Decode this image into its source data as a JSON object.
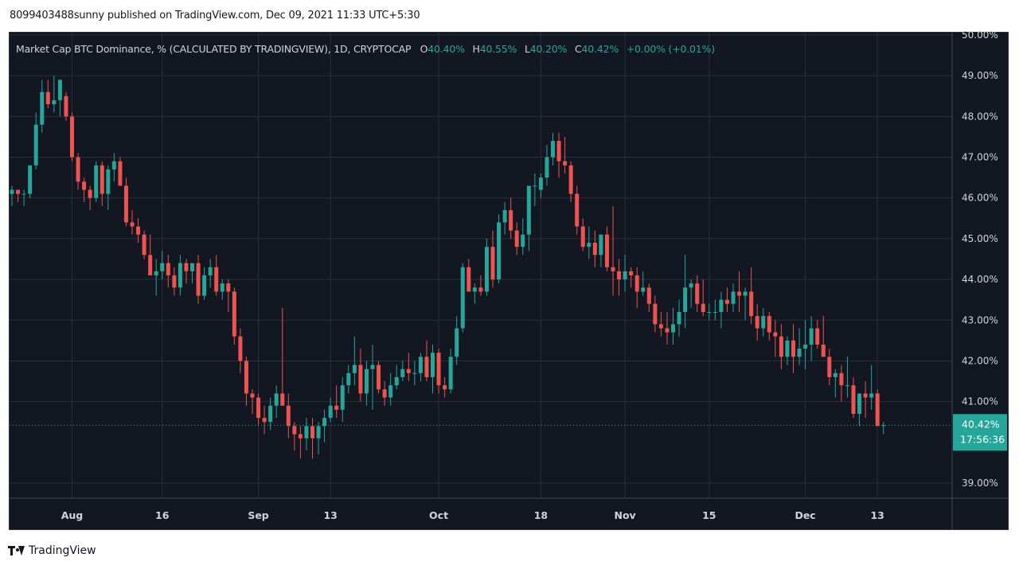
{
  "header": {
    "published_text": "8099403488sunny published on TradingView.com, Dec 09, 2021 11:33 UTC+5:30"
  },
  "legend": {
    "title": "Market Cap BTC Dominance, % (CALCULATED BY TRADINGVIEW), 1D, CRYPTOCAP",
    "o_label": "O",
    "o_value": "40.40%",
    "h_label": "H",
    "h_value": "40.55%",
    "l_label": "L",
    "l_value": "40.20%",
    "c_label": "C",
    "c_value": "40.42%",
    "change": "+0.00% (+0.01%)"
  },
  "price_tag": {
    "value": "40.42%",
    "countdown": "17:56:36"
  },
  "footer": {
    "brand": "TradingView",
    "logo_icon": "tradingview-logo-icon"
  },
  "colors": {
    "up": "#26a69a",
    "down": "#ef5350",
    "background": "#131722",
    "grid": "#2a2e39",
    "text": "#d1d4dc"
  },
  "chart_data": {
    "type": "candlestick",
    "ylim": [
      38.6,
      50.0
    ],
    "y_ticks": [
      {
        "value": 50,
        "label": "50.00%"
      },
      {
        "value": 49,
        "label": "49.00%"
      },
      {
        "value": 48,
        "label": "48.00%"
      },
      {
        "value": 47,
        "label": "47.00%"
      },
      {
        "value": 46,
        "label": "46.00%"
      },
      {
        "value": 45,
        "label": "45.00%"
      },
      {
        "value": 44,
        "label": "44.00%"
      },
      {
        "value": 43,
        "label": "43.00%"
      },
      {
        "value": 42,
        "label": "42.00%"
      },
      {
        "value": 41,
        "label": "41.00%"
      },
      {
        "value": 39,
        "label": "39.00%"
      }
    ],
    "x_ticks": [
      {
        "index": 10,
        "label": "Aug"
      },
      {
        "index": 25,
        "label": "16"
      },
      {
        "index": 41,
        "label": "Sep"
      },
      {
        "index": 53,
        "label": "13"
      },
      {
        "index": 71,
        "label": "Oct"
      },
      {
        "index": 88,
        "label": "18"
      },
      {
        "index": 102,
        "label": "Nov"
      },
      {
        "index": 116,
        "label": "15"
      },
      {
        "index": 132,
        "label": "Dec"
      },
      {
        "index": 144,
        "label": "13"
      }
    ],
    "last_value": 40.42,
    "candles": [
      [
        46.1,
        46.3,
        45.8,
        46.2
      ],
      [
        46.2,
        46.2,
        45.9,
        46.1
      ],
      [
        46.1,
        46.2,
        45.8,
        46.1
      ],
      [
        46.1,
        46.8,
        46.0,
        46.8
      ],
      [
        46.8,
        48.1,
        46.7,
        47.8
      ],
      [
        47.8,
        48.9,
        47.6,
        48.6
      ],
      [
        48.6,
        48.9,
        48.2,
        48.3
      ],
      [
        48.3,
        49.0,
        48.1,
        48.4
      ],
      [
        48.4,
        48.9,
        48.0,
        48.9
      ],
      [
        48.5,
        48.6,
        47.9,
        48.0
      ],
      [
        48.0,
        48.1,
        46.9,
        47.0
      ],
      [
        47.0,
        47.1,
        46.2,
        46.4
      ],
      [
        46.4,
        46.5,
        45.9,
        46.2
      ],
      [
        46.2,
        46.3,
        45.7,
        46.0
      ],
      [
        46.0,
        46.9,
        45.9,
        46.8
      ],
      [
        46.8,
        46.9,
        45.8,
        46.1
      ],
      [
        46.1,
        46.8,
        45.7,
        46.7
      ],
      [
        46.7,
        47.1,
        46.4,
        46.9
      ],
      [
        46.9,
        47.0,
        46.3,
        46.3
      ],
      [
        46.3,
        46.5,
        45.3,
        45.4
      ],
      [
        45.4,
        45.7,
        45.1,
        45.3
      ],
      [
        45.3,
        45.5,
        44.9,
        45.1
      ],
      [
        45.1,
        45.2,
        44.5,
        44.6
      ],
      [
        44.6,
        45.1,
        44.2,
        44.1
      ],
      [
        44.1,
        44.5,
        43.6,
        44.2
      ],
      [
        44.2,
        44.7,
        44.0,
        44.4
      ],
      [
        44.4,
        44.6,
        43.8,
        44.1
      ],
      [
        44.1,
        44.3,
        43.6,
        43.8
      ],
      [
        43.8,
        44.6,
        43.6,
        44.4
      ],
      [
        44.4,
        44.5,
        43.9,
        44.2
      ],
      [
        44.2,
        44.4,
        43.9,
        44.4
      ],
      [
        44.4,
        44.6,
        43.4,
        43.6
      ],
      [
        43.6,
        44.3,
        43.5,
        44.1
      ],
      [
        44.1,
        44.5,
        43.8,
        44.3
      ],
      [
        44.3,
        44.6,
        43.6,
        43.7
      ],
      [
        43.7,
        44.0,
        43.5,
        43.9
      ],
      [
        43.9,
        44.0,
        43.2,
        43.7
      ],
      [
        43.7,
        43.8,
        42.4,
        42.6
      ],
      [
        42.6,
        42.8,
        41.7,
        42.0
      ],
      [
        42.0,
        42.1,
        40.9,
        41.2
      ],
      [
        41.2,
        41.3,
        40.7,
        41.1
      ],
      [
        41.1,
        41.2,
        40.4,
        40.6
      ],
      [
        40.6,
        40.9,
        40.2,
        40.5
      ],
      [
        40.5,
        41.1,
        40.3,
        40.9
      ],
      [
        40.9,
        41.4,
        40.6,
        41.2
      ],
      [
        41.2,
        43.3,
        40.9,
        40.9
      ],
      [
        40.9,
        41.2,
        40.1,
        40.4
      ],
      [
        40.4,
        40.5,
        39.8,
        40.2
      ],
      [
        40.2,
        40.4,
        39.6,
        40.1
      ],
      [
        40.1,
        40.6,
        39.8,
        40.4
      ],
      [
        40.4,
        40.6,
        39.6,
        40.1
      ],
      [
        40.1,
        40.5,
        39.7,
        40.4
      ],
      [
        40.4,
        40.8,
        40.0,
        40.6
      ],
      [
        40.6,
        41.1,
        40.5,
        40.9
      ],
      [
        40.9,
        41.4,
        40.6,
        40.8
      ],
      [
        40.8,
        41.6,
        40.5,
        41.4
      ],
      [
        41.4,
        41.9,
        41.2,
        41.7
      ],
      [
        41.7,
        42.6,
        41.4,
        41.9
      ],
      [
        41.9,
        42.3,
        41.0,
        41.2
      ],
      [
        41.2,
        42.0,
        40.9,
        41.8
      ],
      [
        41.8,
        42.4,
        40.8,
        41.9
      ],
      [
        41.9,
        42.0,
        41.2,
        41.3
      ],
      [
        41.3,
        41.5,
        40.9,
        41.1
      ],
      [
        41.1,
        41.7,
        40.9,
        41.4
      ],
      [
        41.4,
        41.9,
        41.3,
        41.6
      ],
      [
        41.6,
        42.0,
        41.5,
        41.8
      ],
      [
        41.8,
        42.2,
        41.5,
        41.7
      ],
      [
        41.7,
        42.0,
        41.4,
        41.7
      ],
      [
        41.7,
        42.2,
        41.5,
        42.1
      ],
      [
        42.1,
        42.5,
        41.5,
        41.6
      ],
      [
        41.6,
        42.4,
        41.2,
        42.2
      ],
      [
        42.2,
        42.3,
        41.2,
        41.4
      ],
      [
        41.4,
        41.6,
        41.1,
        41.3
      ],
      [
        41.3,
        42.3,
        41.2,
        42.1
      ],
      [
        42.1,
        43.1,
        41.9,
        42.8
      ],
      [
        42.8,
        44.4,
        42.7,
        44.3
      ],
      [
        44.3,
        44.5,
        43.7,
        43.7
      ],
      [
        43.7,
        43.9,
        43.4,
        43.8
      ],
      [
        43.8,
        44.1,
        43.6,
        43.7
      ],
      [
        43.7,
        45.0,
        43.6,
        44.8
      ],
      [
        44.8,
        45.2,
        43.8,
        44.0
      ],
      [
        44.0,
        45.6,
        43.9,
        45.4
      ],
      [
        45.4,
        45.9,
        45.1,
        45.7
      ],
      [
        45.7,
        46.0,
        45.0,
        45.2
      ],
      [
        45.2,
        45.4,
        44.6,
        44.8
      ],
      [
        44.8,
        45.5,
        44.6,
        45.1
      ],
      [
        45.1,
        46.2,
        44.7,
        46.3
      ],
      [
        46.3,
        46.6,
        45.8,
        46.3
      ],
      [
        46.2,
        46.6,
        46.0,
        46.5
      ],
      [
        46.5,
        47.3,
        46.3,
        47.0
      ],
      [
        47.0,
        47.6,
        46.8,
        47.4
      ],
      [
        47.4,
        47.6,
        46.5,
        46.9
      ],
      [
        46.9,
        47.5,
        46.6,
        46.8
      ],
      [
        46.8,
        46.9,
        45.9,
        46.1
      ],
      [
        46.1,
        46.3,
        45.1,
        45.3
      ],
      [
        45.3,
        45.5,
        44.7,
        44.8
      ],
      [
        44.8,
        45.3,
        44.5,
        44.9
      ],
      [
        44.9,
        45.2,
        44.3,
        44.6
      ],
      [
        44.6,
        45.1,
        44.3,
        45.1
      ],
      [
        45.1,
        45.3,
        44.2,
        44.3
      ],
      [
        44.3,
        45.8,
        43.6,
        44.2
      ],
      [
        44.2,
        44.5,
        43.6,
        44.0
      ],
      [
        44.0,
        44.6,
        43.7,
        44.2
      ],
      [
        44.2,
        44.3,
        43.8,
        44.1
      ],
      [
        44.1,
        44.3,
        43.3,
        43.7
      ],
      [
        43.7,
        44.2,
        43.6,
        43.8
      ],
      [
        43.8,
        43.9,
        43.2,
        43.4
      ],
      [
        43.4,
        43.6,
        42.7,
        42.9
      ],
      [
        42.9,
        43.2,
        42.6,
        42.8
      ],
      [
        42.8,
        43.2,
        42.4,
        42.7
      ],
      [
        42.7,
        43.3,
        42.4,
        42.9
      ],
      [
        42.9,
        43.5,
        42.6,
        43.2
      ],
      [
        43.2,
        44.6,
        42.8,
        43.8
      ],
      [
        43.8,
        44.0,
        43.3,
        43.9
      ],
      [
        43.9,
        44.1,
        43.2,
        43.4
      ],
      [
        43.4,
        44.0,
        43.1,
        43.2
      ],
      [
        43.2,
        43.4,
        43.0,
        43.2
      ],
      [
        43.2,
        43.5,
        43.0,
        43.2
      ],
      [
        43.2,
        43.7,
        42.8,
        43.5
      ],
      [
        43.5,
        43.8,
        43.2,
        43.4
      ],
      [
        43.4,
        43.9,
        43.2,
        43.7
      ],
      [
        43.7,
        44.2,
        43.2,
        43.6
      ],
      [
        43.6,
        43.8,
        43.0,
        43.7
      ],
      [
        43.7,
        44.3,
        42.9,
        43.1
      ],
      [
        43.1,
        43.4,
        42.5,
        42.8
      ],
      [
        42.8,
        43.3,
        42.6,
        43.1
      ],
      [
        43.1,
        43.2,
        42.5,
        42.7
      ],
      [
        42.7,
        43.0,
        42.1,
        42.6
      ],
      [
        42.6,
        42.9,
        41.8,
        42.1
      ],
      [
        42.1,
        42.6,
        41.9,
        42.5
      ],
      [
        42.5,
        42.9,
        41.7,
        42.1
      ],
      [
        42.1,
        42.8,
        41.9,
        42.3
      ],
      [
        42.3,
        43.0,
        41.8,
        42.4
      ],
      [
        42.4,
        43.1,
        42.0,
        42.8
      ],
      [
        42.8,
        43.0,
        42.3,
        42.4
      ],
      [
        42.4,
        43.1,
        42.2,
        42.1
      ],
      [
        42.1,
        42.3,
        41.4,
        41.6
      ],
      [
        41.6,
        41.8,
        41.1,
        41.7
      ],
      [
        41.7,
        41.9,
        41.0,
        41.4
      ],
      [
        41.4,
        42.1,
        41.1,
        41.4
      ],
      [
        41.4,
        41.6,
        40.6,
        40.7
      ],
      [
        40.7,
        41.2,
        40.4,
        41.2
      ],
      [
        41.2,
        41.5,
        40.6,
        41.1
      ],
      [
        41.1,
        41.9,
        40.8,
        41.2
      ],
      [
        41.2,
        41.3,
        40.5,
        40.4
      ],
      [
        40.4,
        40.5,
        40.2,
        40.42
      ]
    ]
  }
}
